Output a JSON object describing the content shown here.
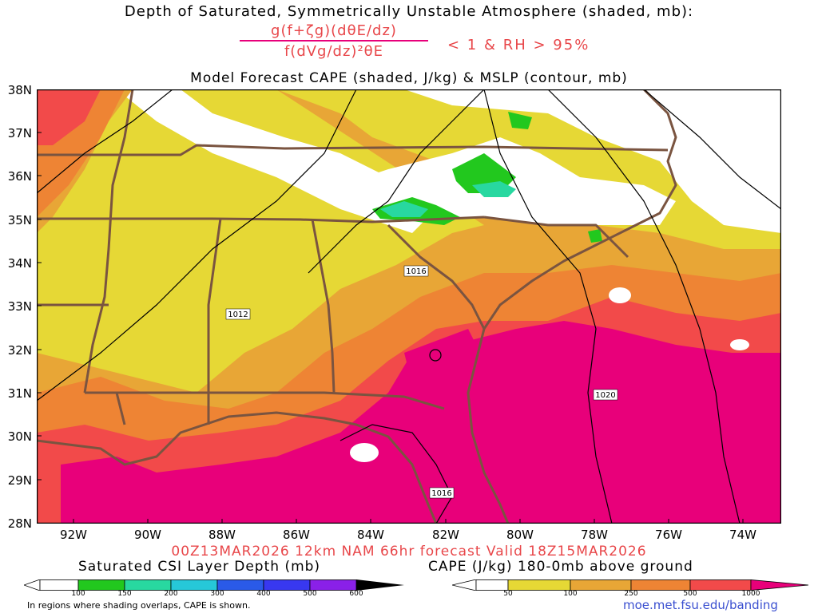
{
  "title": {
    "line1": "Depth of Saturated, Symmetrically Unstable Atmosphere (shaded, mb):",
    "numerator": "g(f+ζg)(dθE/dz)",
    "denominator": "f(dVg/dz)²θE",
    "condition": "< 1 & RH > 95%",
    "line3": "Model Forecast CAPE (shaded, J/kg) & MSLP (contour, mb)"
  },
  "lat_labels": [
    "38N",
    "37N",
    "36N",
    "35N",
    "34N",
    "33N",
    "32N",
    "31N",
    "30N",
    "29N",
    "28N"
  ],
  "lon_labels": [
    "92W",
    "90W",
    "88W",
    "86W",
    "84W",
    "82W",
    "80W",
    "78W",
    "76W",
    "74W"
  ],
  "isobar_labels": [
    "1016",
    "1012",
    "1020",
    "1016"
  ],
  "valid_text": "00Z13MAR2026 12km NAM 66hr forecast Valid 18Z15MAR2026",
  "legend_csi": {
    "title": "Saturated CSI Layer Depth (mb)",
    "ticks": [
      "100",
      "150",
      "200",
      "300",
      "400",
      "500",
      "600"
    ],
    "colors": [
      "#ffffff",
      "#22c81e",
      "#28d8a0",
      "#26c8d8",
      "#2a5ae8",
      "#3838f0",
      "#8a20e8",
      "#000000"
    ]
  },
  "legend_cape": {
    "title": "CAPE (J/kg) 180-0mb above ground",
    "ticks": [
      "50",
      "100",
      "250",
      "500",
      "1000"
    ],
    "colors": [
      "#ffffff",
      "#e6d835",
      "#e8a636",
      "#ee8434",
      "#f24a4a",
      "#e8007a"
    ]
  },
  "note": "In regions where shading overlaps, CAPE is shown.",
  "url": "moe.met.fsu.edu/banding"
}
